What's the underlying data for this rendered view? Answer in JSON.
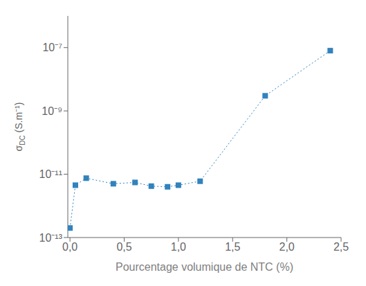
{
  "chart_data": {
    "type": "line",
    "xlabel": "Pourcentage volumique de NTC (%)",
    "ylabel": "σDC (S.m⁻¹)",
    "x": [
      0.0,
      0.05,
      0.15,
      0.4,
      0.6,
      0.75,
      0.9,
      1.0,
      1.2,
      1.8,
      2.4
    ],
    "values": [
      2e-13,
      4.5e-12,
      7.5e-12,
      5e-12,
      5.5e-12,
      4.2e-12,
      4e-12,
      4.5e-12,
      6e-12,
      3e-09,
      8e-08
    ],
    "xlim": [
      -0.02,
      2.5
    ],
    "ylim": [
      1e-13,
      1e-06
    ],
    "xticks": [
      {
        "value": 0.0,
        "label": "0,0"
      },
      {
        "value": 0.5,
        "label": "0,5"
      },
      {
        "value": 1.0,
        "label": "1,0"
      },
      {
        "value": 1.5,
        "label": "1,5"
      },
      {
        "value": 2.0,
        "label": "2,0"
      },
      {
        "value": 2.5,
        "label": "2,5"
      }
    ],
    "yticks": [
      {
        "value": 1e-13,
        "label": "10⁻¹³"
      },
      {
        "value": 1e-11,
        "label": "10⁻¹¹"
      },
      {
        "value": 1e-09,
        "label": "10⁻⁹"
      },
      {
        "value": 1e-07,
        "label": "10⁻⁷"
      }
    ],
    "log": "y",
    "marker": "square",
    "line_style": "dotted",
    "grid": false
  }
}
